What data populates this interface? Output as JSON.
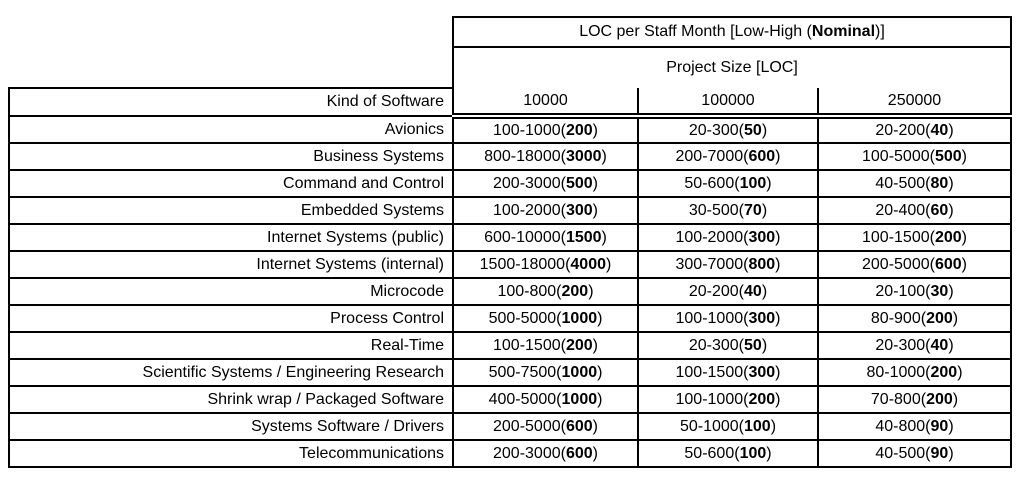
{
  "table": {
    "title": {
      "prefix": "LOC per Staff Month [Low-High (",
      "bold": "Nominal",
      "suffix": ")]"
    },
    "subtitle": "Project Size [LOC]",
    "row_header": "Kind of Software",
    "columns": [
      "10000",
      "100000",
      "250000"
    ],
    "rows": [
      {
        "label": "Avionics",
        "cells": [
          {
            "range": "100-1000",
            "nominal": "200"
          },
          {
            "range": "20-300",
            "nominal": "50"
          },
          {
            "range": "20-200",
            "nominal": "40"
          }
        ]
      },
      {
        "label": "Business Systems",
        "cells": [
          {
            "range": "800-18000",
            "nominal": "3000"
          },
          {
            "range": "200-7000",
            "nominal": "600"
          },
          {
            "range": "100-5000",
            "nominal": "500"
          }
        ]
      },
      {
        "label": "Command and Control",
        "cells": [
          {
            "range": "200-3000",
            "nominal": "500"
          },
          {
            "range": "50-600",
            "nominal": "100"
          },
          {
            "range": "40-500",
            "nominal": "80"
          }
        ]
      },
      {
        "label": "Embedded Systems",
        "cells": [
          {
            "range": "100-2000",
            "nominal": "300"
          },
          {
            "range": "30-500",
            "nominal": "70"
          },
          {
            "range": "20-400",
            "nominal": "60"
          }
        ]
      },
      {
        "label": "Internet Systems (public)",
        "cells": [
          {
            "range": "600-10000",
            "nominal": "1500"
          },
          {
            "range": "100-2000",
            "nominal": "300"
          },
          {
            "range": "100-1500",
            "nominal": "200"
          }
        ]
      },
      {
        "label": "Internet Systems (internal)",
        "cells": [
          {
            "range": "1500-18000",
            "nominal": "4000"
          },
          {
            "range": "300-7000",
            "nominal": "800"
          },
          {
            "range": "200-5000",
            "nominal": "600"
          }
        ]
      },
      {
        "label": "Microcode",
        "cells": [
          {
            "range": "100-800",
            "nominal": "200"
          },
          {
            "range": "20-200",
            "nominal": "40"
          },
          {
            "range": "20-100",
            "nominal": "30"
          }
        ]
      },
      {
        "label": "Process Control",
        "cells": [
          {
            "range": "500-5000",
            "nominal": "1000"
          },
          {
            "range": "100-1000",
            "nominal": "300"
          },
          {
            "range": "80-900",
            "nominal": "200"
          }
        ]
      },
      {
        "label": "Real-Time",
        "cells": [
          {
            "range": "100-1500",
            "nominal": "200"
          },
          {
            "range": "20-300",
            "nominal": "50"
          },
          {
            "range": "20-300",
            "nominal": "40"
          }
        ]
      },
      {
        "label": "Scientific Systems / Engineering Research",
        "cells": [
          {
            "range": "500-7500",
            "nominal": "1000"
          },
          {
            "range": "100-1500",
            "nominal": "300"
          },
          {
            "range": "80-1000",
            "nominal": "200"
          }
        ]
      },
      {
        "label": "Shrink wrap / Packaged Software",
        "cells": [
          {
            "range": "400-5000",
            "nominal": "1000"
          },
          {
            "range": "100-1000",
            "nominal": "200"
          },
          {
            "range": "70-800",
            "nominal": "200"
          }
        ]
      },
      {
        "label": "Systems Software / Drivers",
        "cells": [
          {
            "range": "200-5000",
            "nominal": "600"
          },
          {
            "range": "50-1000",
            "nominal": "100"
          },
          {
            "range": "40-800",
            "nominal": "90"
          }
        ]
      },
      {
        "label": "Telecommunications",
        "cells": [
          {
            "range": "200-3000",
            "nominal": "600"
          },
          {
            "range": "50-600",
            "nominal": "100"
          },
          {
            "range": "40-500",
            "nominal": "90"
          }
        ]
      }
    ]
  }
}
